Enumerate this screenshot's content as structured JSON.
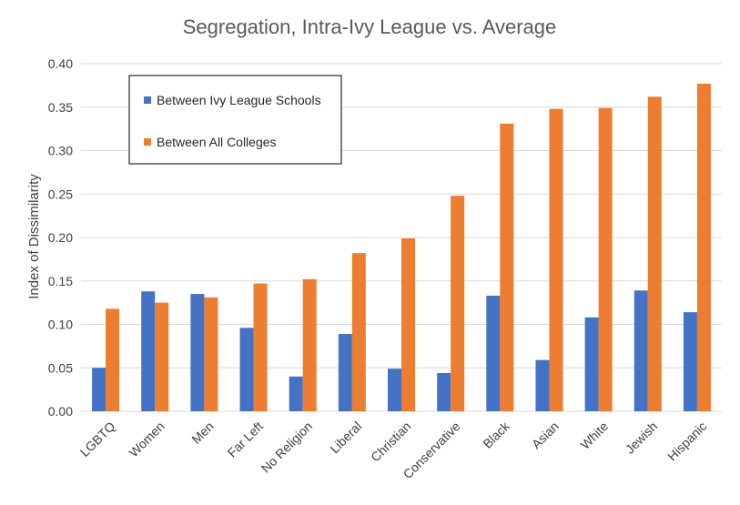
{
  "chart_data": {
    "type": "bar",
    "title": "Segregation, Intra-Ivy League vs. Average",
    "xlabel": "",
    "ylabel": "Index of Dissimilarity",
    "ylim": [
      0,
      0.4
    ],
    "yticks": [
      "0.00",
      "0.05",
      "0.10",
      "0.15",
      "0.20",
      "0.25",
      "0.30",
      "0.35",
      "0.40"
    ],
    "grid": true,
    "legend_position": "top-left",
    "categories": [
      "LGBTQ",
      "Women",
      "Men",
      "Far Left",
      "No Religion",
      "Liberal",
      "Christian",
      "Conservative",
      "Black",
      "Asian",
      "White",
      "Jewish",
      "Hispanic"
    ],
    "series": [
      {
        "name": "Between Ivy League Schools",
        "color": "#4472c4",
        "values": [
          0.05,
          0.138,
          0.135,
          0.096,
          0.04,
          0.089,
          0.049,
          0.044,
          0.133,
          0.059,
          0.108,
          0.139,
          0.114
        ]
      },
      {
        "name": "Between All Colleges",
        "color": "#ed7d31",
        "values": [
          0.118,
          0.125,
          0.131,
          0.147,
          0.152,
          0.182,
          0.199,
          0.248,
          0.331,
          0.348,
          0.349,
          0.362,
          0.377
        ]
      }
    ]
  }
}
